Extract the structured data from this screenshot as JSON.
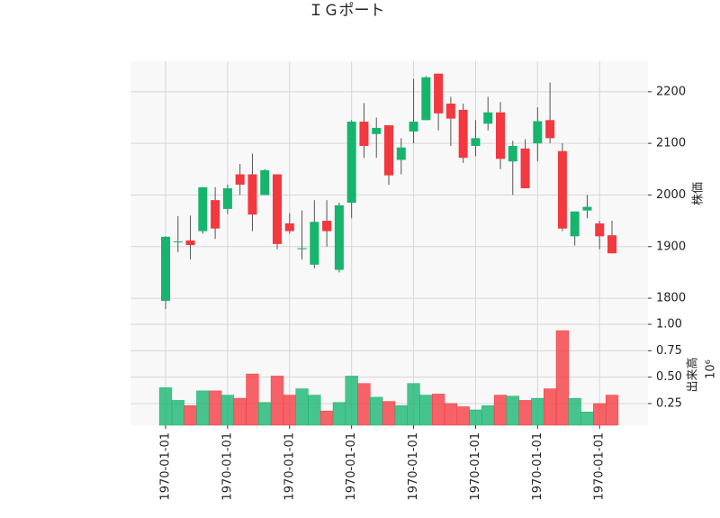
{
  "chart_data": [
    {
      "type": "candlestick",
      "title": "ＩＧポート",
      "ylabel": "株価",
      "categories": [
        "1970-01-01",
        null,
        null,
        null,
        null,
        "1970-01-01",
        null,
        null,
        null,
        null,
        "1970-01-01",
        null,
        null,
        null,
        null,
        "1970-01-01",
        null,
        null,
        null,
        null,
        "1970-01-01",
        null,
        null,
        null,
        null,
        "1970-01-01",
        null,
        null,
        null,
        null,
        "1970-01-01",
        null,
        null,
        null,
        null,
        "1970-01-01",
        null
      ],
      "open": [
        1795,
        1909,
        1912,
        1930,
        1990,
        1973,
        2040,
        2040,
        2000,
        2040,
        1945,
        1895,
        1865,
        1950,
        1855,
        1985,
        2142,
        2118,
        2135,
        2068,
        2123,
        2145,
        2235,
        2177,
        2165,
        2095,
        2138,
        2160,
        2065,
        2090,
        2100,
        2145,
        2085,
        1920,
        1970,
        1945,
        1922
      ],
      "high": [
        1920,
        1959,
        1960,
        2015,
        2015,
        2020,
        2060,
        2080,
        2050,
        2040,
        1965,
        1970,
        1990,
        1990,
        1985,
        2145,
        2178,
        2150,
        2135,
        2110,
        2225,
        2230,
        2235,
        2190,
        2177,
        2145,
        2190,
        2180,
        2105,
        2108,
        2170,
        2218,
        2100,
        1968,
        2000,
        1950,
        1950
      ],
      "low": [
        1779,
        1889,
        1875,
        1925,
        1915,
        1963,
        2000,
        1930,
        2000,
        1895,
        1925,
        1875,
        1858,
        1900,
        1850,
        1955,
        2072,
        2072,
        2020,
        2040,
        2100,
        2145,
        2125,
        2095,
        2062,
        2075,
        2125,
        2050,
        2000,
        2013,
        2065,
        2100,
        1930,
        1902,
        1955,
        1895,
        1887
      ],
      "close": [
        1919,
        1910,
        1903,
        2015,
        1935,
        2013,
        2020,
        1962,
        2048,
        1905,
        1930,
        1897,
        1948,
        1930,
        1980,
        2142,
        2095,
        2130,
        2038,
        2092,
        2142,
        2228,
        2158,
        2148,
        2072,
        2110,
        2160,
        2070,
        2095,
        2013,
        2143,
        2110,
        1935,
        1968,
        1977,
        1920,
        1887
      ],
      "ylim": [
        1753,
        2259
      ],
      "yticks": [
        1800,
        1900,
        2000,
        2100,
        2200
      ],
      "up_color": "#15b56e",
      "down_color": "#f3383f",
      "grid": true
    },
    {
      "type": "bar",
      "ylabel": "出来高",
      "offset_label": "10⁶",
      "values": [
        0.4,
        0.28,
        0.23,
        0.37,
        0.37,
        0.33,
        0.3,
        0.53,
        0.26,
        0.51,
        0.33,
        0.39,
        0.33,
        0.18,
        0.26,
        0.51,
        0.44,
        0.31,
        0.27,
        0.23,
        0.44,
        0.33,
        0.34,
        0.25,
        0.22,
        0.19,
        0.23,
        0.33,
        0.32,
        0.28,
        0.3,
        0.39,
        0.94,
        0.3,
        0.17,
        0.25,
        0.33
      ],
      "ylim": [
        0.045,
        1.017
      ],
      "yticks": [
        0.25,
        {
          "value": 0.5,
          "label": "0.50"
        },
        {
          "value": 0.75,
          "label": "0.75"
        },
        {
          "value": 1,
          "label": "1.00"
        }
      ],
      "grid": true
    }
  ]
}
